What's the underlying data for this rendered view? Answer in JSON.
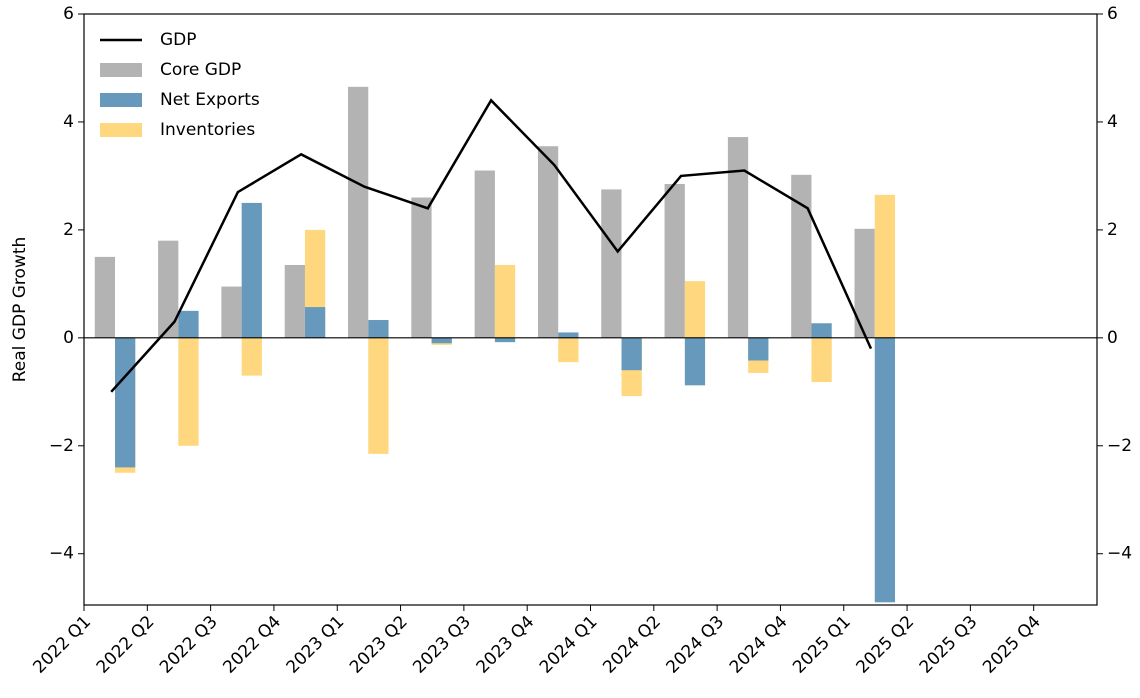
{
  "chart_data": {
    "type": "bar",
    "y_label": "Real GDP Growth",
    "categories": [
      "2022 Q1",
      "2022 Q2",
      "2022 Q3",
      "2022 Q4",
      "2023 Q1",
      "2023 Q2",
      "2023 Q3",
      "2023 Q4",
      "2024 Q1",
      "2024 Q2",
      "2024 Q3",
      "2024 Q4",
      "2025 Q1",
      "2025 Q2",
      "2025 Q3",
      "2025 Q4"
    ],
    "series": [
      {
        "name": "GDP",
        "type": "line",
        "color": "#000000",
        "values": [
          -1.0,
          0.3,
          2.7,
          3.4,
          2.8,
          2.4,
          4.4,
          3.2,
          1.6,
          3.0,
          3.1,
          2.4,
          -0.2,
          null,
          null,
          null
        ]
      },
      {
        "name": "Core GDP",
        "type": "bar",
        "color": "#b3b3b3",
        "values": [
          1.5,
          1.8,
          0.95,
          1.35,
          4.65,
          2.6,
          3.1,
          3.55,
          2.75,
          2.85,
          3.72,
          3.02,
          2.02,
          null,
          null,
          null
        ]
      },
      {
        "name": "Net Exports",
        "type": "bar",
        "color": "#6699bb",
        "values": [
          -2.4,
          0.5,
          2.5,
          0.57,
          0.33,
          -0.1,
          -0.08,
          0.1,
          -0.6,
          -0.88,
          -0.42,
          0.27,
          -4.9,
          null,
          null,
          null
        ]
      },
      {
        "name": "Inventories",
        "type": "bar",
        "color": "#ffd77f",
        "values": [
          -2.5,
          -2.0,
          -0.7,
          2.0,
          -2.15,
          -0.13,
          1.35,
          -0.45,
          -1.08,
          1.05,
          -0.65,
          -0.82,
          2.65,
          null,
          null,
          null
        ]
      }
    ],
    "ylim": [
      -4.95,
      6
    ],
    "yticks": [
      {
        "value": -4,
        "label": "−4"
      },
      {
        "value": -2,
        "label": "−2"
      },
      0,
      2,
      4,
      6
    ],
    "y2lim": [
      -4.95,
      6
    ],
    "y2ticks": [
      {
        "value": -4,
        "label": "−4"
      },
      {
        "value": -2,
        "label": "−2"
      },
      0,
      2,
      4,
      6
    ],
    "legend": "upper left",
    "grid": false
  }
}
